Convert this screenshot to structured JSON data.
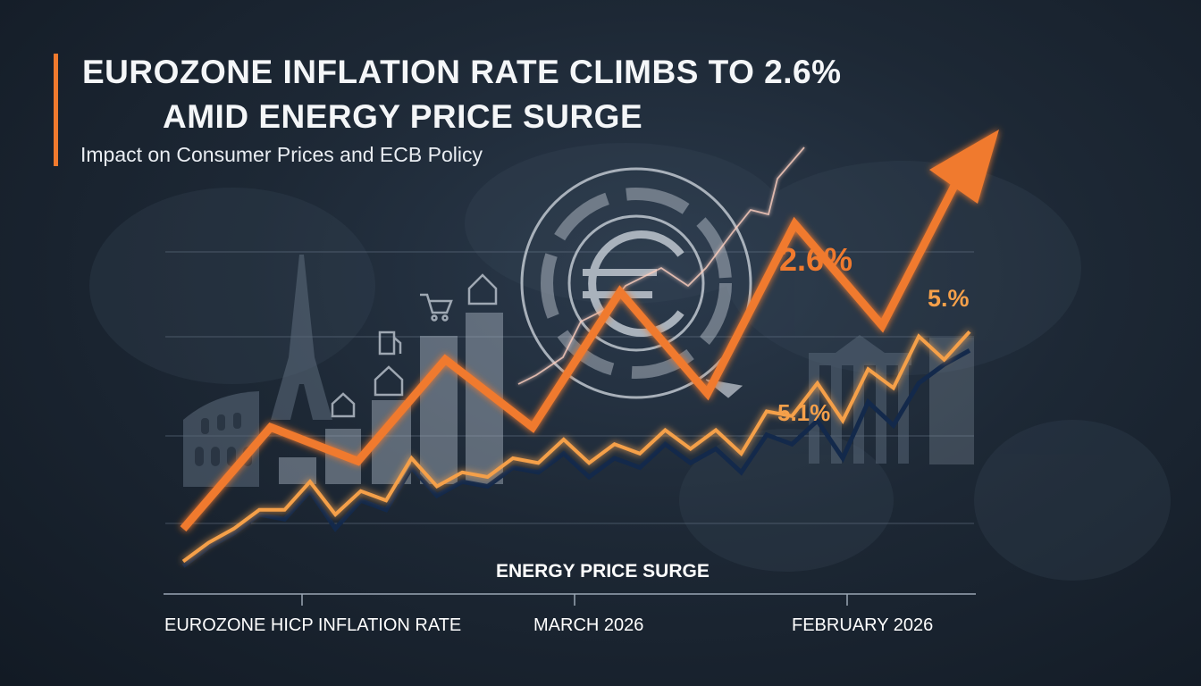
{
  "header": {
    "title_line1": "EUROZONE INFLATION RATE CLIMBS TO 2.6%",
    "title_line2": "AMID ENERGY PRICE SURGE",
    "subtitle": "Impact on Consumer Prices and ECB Policy"
  },
  "colors": {
    "accent": "#f07a2e",
    "secondary": "#f5a04a",
    "navy": "#13294b",
    "background": "#1d2835"
  },
  "icons": [
    "euro-symbol-icon",
    "cart-icon",
    "fuel-pump-icon",
    "house-icon",
    "colosseum-icon",
    "eiffel-tower-icon",
    "brandenburg-gate-icon",
    "trend-arrow-icon"
  ],
  "chart_data": {
    "type": "line",
    "x_labels": [
      "EUROZONE HICP INFLATION RATE",
      "MARCH 2026",
      "FEBRUARY 2026"
    ],
    "annotations": {
      "main_value": "2.6%",
      "secondary_value": "5.1%",
      "end_value": "5.%",
      "band_label": "ENERGY PRICE SURGE"
    },
    "series": [
      {
        "values": [
          1,
          4,
          3,
          6,
          4,
          8,
          5,
          10,
          7,
          12
        ]
      },
      {
        "values": [
          0.5,
          0.9,
          1.2,
          1.6,
          1.5,
          2.1,
          1.3,
          1.9,
          1.7,
          2.6,
          2.0,
          2.3,
          2.2,
          2.6,
          2.5,
          2.9,
          2.4,
          2.8,
          2.6,
          3.1,
          2.7,
          3.0,
          2.5,
          3.3,
          3.1,
          3.6,
          2.8,
          4.0,
          3.5,
          4.4,
          4.8,
          5.1
        ]
      },
      {
        "values": [
          0.6,
          1.0,
          1.3,
          1.7,
          1.7,
          2.3,
          1.6,
          2.1,
          1.9,
          2.8,
          2.2,
          2.5,
          2.4,
          2.8,
          2.7,
          3.2,
          2.7,
          3.1,
          2.9,
          3.4,
          3.0,
          3.4,
          2.9,
          3.8,
          3.7,
          4.4,
          3.6,
          4.7,
          4.3,
          5.4,
          4.9,
          5.5
        ]
      }
    ]
  }
}
